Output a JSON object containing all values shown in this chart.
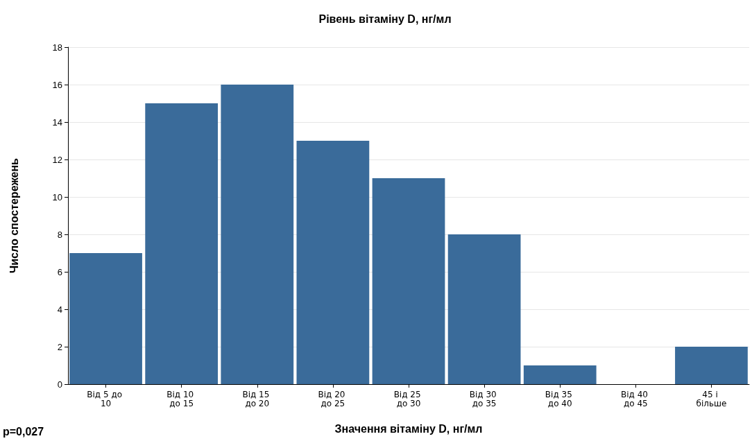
{
  "chart_data": {
    "type": "bar",
    "title": "Рівень вітаміну D, нг/мл",
    "xlabel": "Значення вітаміну D, нг/мл",
    "ylabel": "Число спостережень",
    "categories": [
      "Від 5 до 10",
      "Від 10 до 15",
      "Від 15 до 20",
      "Від 20 до 25",
      "Від 25 до 30",
      "Від 30 до 35",
      "Від 35 до 40",
      "Від 40 до 45",
      "45 і більше"
    ],
    "values": [
      7,
      15,
      16,
      13,
      11,
      8,
      1,
      0,
      2
    ],
    "color": "#3a6b9a",
    "ylim": [
      0,
      18
    ],
    "yticks": [
      0,
      2,
      4,
      6,
      8,
      10,
      12,
      14,
      16,
      18
    ],
    "grid": "y",
    "annotations": [
      "p=0,027"
    ]
  }
}
